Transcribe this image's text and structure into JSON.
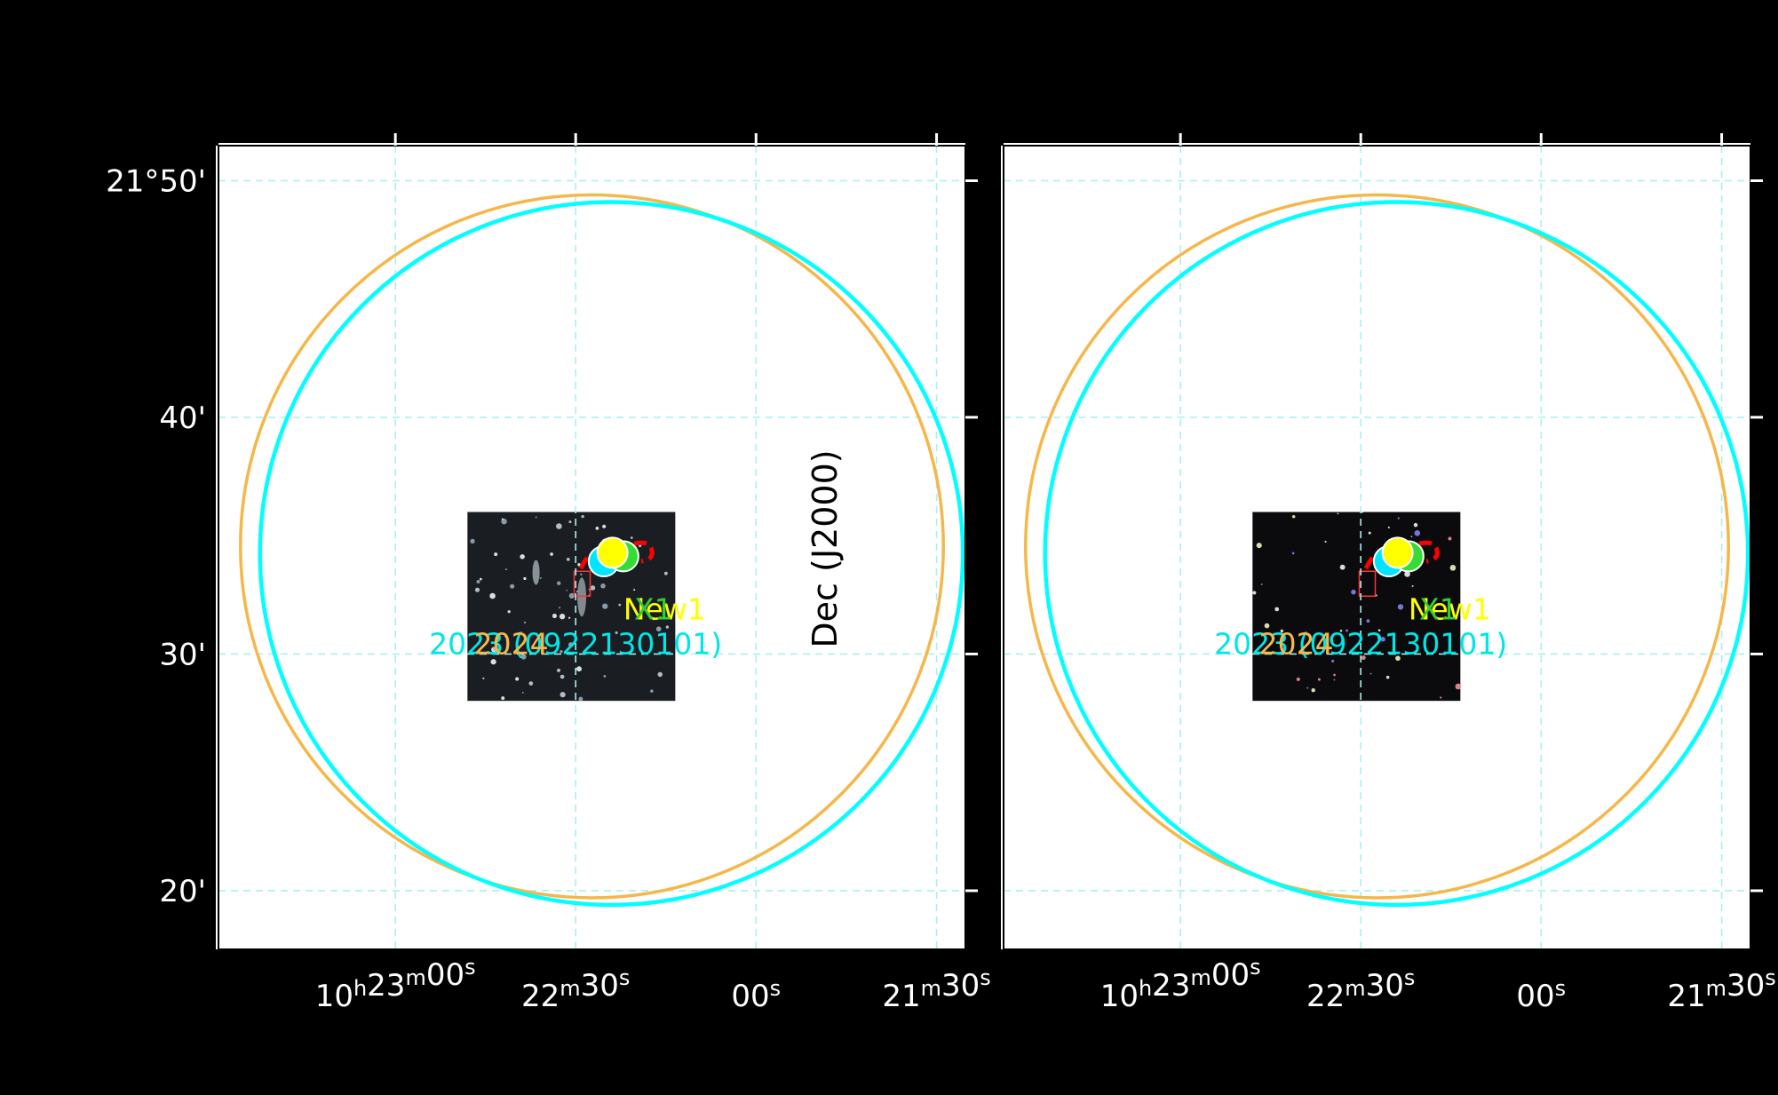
{
  "figure": {
    "background": "#000000",
    "panel_background": "#ffffff",
    "grid_color": "#a8f0f0",
    "middle_axis_label": "Dec (J2000)"
  },
  "chart_data": [
    {
      "type": "scatter",
      "name": "left panel",
      "xlabel": "",
      "ylabel": "",
      "xlim": [
        10.3915,
        10.357
      ],
      "ylim": [
        21.292,
        21.858
      ],
      "x_ticks": [
        {
          "value": 10.38333,
          "label": "10h23m00s"
        },
        {
          "value": 10.375,
          "label": "22m30s"
        },
        {
          "value": 10.36667,
          "label": "00s"
        },
        {
          "value": 10.35833,
          "label": "21m30s"
        }
      ],
      "y_ticks": [
        {
          "value": 21.8333,
          "label": "21°50'"
        },
        {
          "value": 21.6667,
          "label": "40'"
        },
        {
          "value": 21.5,
          "label": "30'"
        },
        {
          "value": 21.3333,
          "label": "20'"
        }
      ],
      "grid": true,
      "regions": [
        {
          "kind": "circle",
          "color": "#f5b74a",
          "ra": 10.37425,
          "dec": 21.5758,
          "radius_deg": 0.2475
        },
        {
          "kind": "circle",
          "color": "#00ffff",
          "ra": 10.37335,
          "dec": 21.5708,
          "radius_deg": 0.2475
        }
      ],
      "points": [
        {
          "color": "#00e5ff",
          "ra": 10.3737,
          "dec": 21.5653
        },
        {
          "color": "#33dd33",
          "ra": 10.3728,
          "dec": 21.5688
        },
        {
          "color": "#ffff00",
          "ra": 10.3733,
          "dec": 21.5713
        }
      ],
      "inset": {
        "ra_left": 10.38,
        "ra_right": 10.3704,
        "dec_top": 21.6,
        "dec_bottom": 21.467
      },
      "labels": [
        {
          "text": "2023 (0922130101)",
          "color": "#00e5e5",
          "ra": 10.375,
          "dec": 21.5
        },
        {
          "text": "2024",
          "color": "#f5b74a",
          "ra": 10.3797,
          "dec": 21.5
        },
        {
          "text": "New1",
          "color": "#ffff00",
          "ra": 10.3728,
          "dec": 21.5242
        },
        {
          "text": "X1",
          "color": "#33cc33",
          "ra": 10.3723,
          "dec": 21.5242
        }
      ]
    },
    {
      "type": "scatter",
      "name": "right panel",
      "xlabel": "",
      "ylabel": "",
      "xlim": [
        10.3915,
        10.357
      ],
      "ylim": [
        21.292,
        21.858
      ],
      "x_ticks": [
        {
          "value": 10.38333,
          "label": "10h23m00s"
        },
        {
          "value": 10.375,
          "label": "22m30s"
        },
        {
          "value": 10.36667,
          "label": "00s"
        },
        {
          "value": 10.35833,
          "label": "21m30s"
        }
      ],
      "y_ticks": [
        {
          "value": 21.8333,
          "label": ""
        },
        {
          "value": 21.6667,
          "label": ""
        },
        {
          "value": 21.5,
          "label": ""
        },
        {
          "value": 21.3333,
          "label": ""
        }
      ],
      "grid": true,
      "regions": [
        {
          "kind": "circle",
          "color": "#f5b74a",
          "ra": 10.37425,
          "dec": 21.5758,
          "radius_deg": 0.2475
        },
        {
          "kind": "circle",
          "color": "#00ffff",
          "ra": 10.37335,
          "dec": 21.5708,
          "radius_deg": 0.2475
        }
      ],
      "points": [
        {
          "color": "#00e5ff",
          "ra": 10.3737,
          "dec": 21.5653
        },
        {
          "color": "#33dd33",
          "ra": 10.3728,
          "dec": 21.5688
        },
        {
          "color": "#ffff00",
          "ra": 10.3733,
          "dec": 21.5713
        }
      ],
      "inset": {
        "ra_left": 10.38,
        "ra_right": 10.3704,
        "dec_top": 21.6,
        "dec_bottom": 21.467
      },
      "labels": [
        {
          "text": "2023 (0922130101)",
          "color": "#00e5e5",
          "ra": 10.375,
          "dec": 21.5
        },
        {
          "text": "2024",
          "color": "#f5b74a",
          "ra": 10.3797,
          "dec": 21.5
        },
        {
          "text": "New1",
          "color": "#ffff00",
          "ra": 10.3728,
          "dec": 21.5242
        },
        {
          "text": "X1",
          "color": "#33cc33",
          "ra": 10.3723,
          "dec": 21.5242
        }
      ]
    }
  ]
}
